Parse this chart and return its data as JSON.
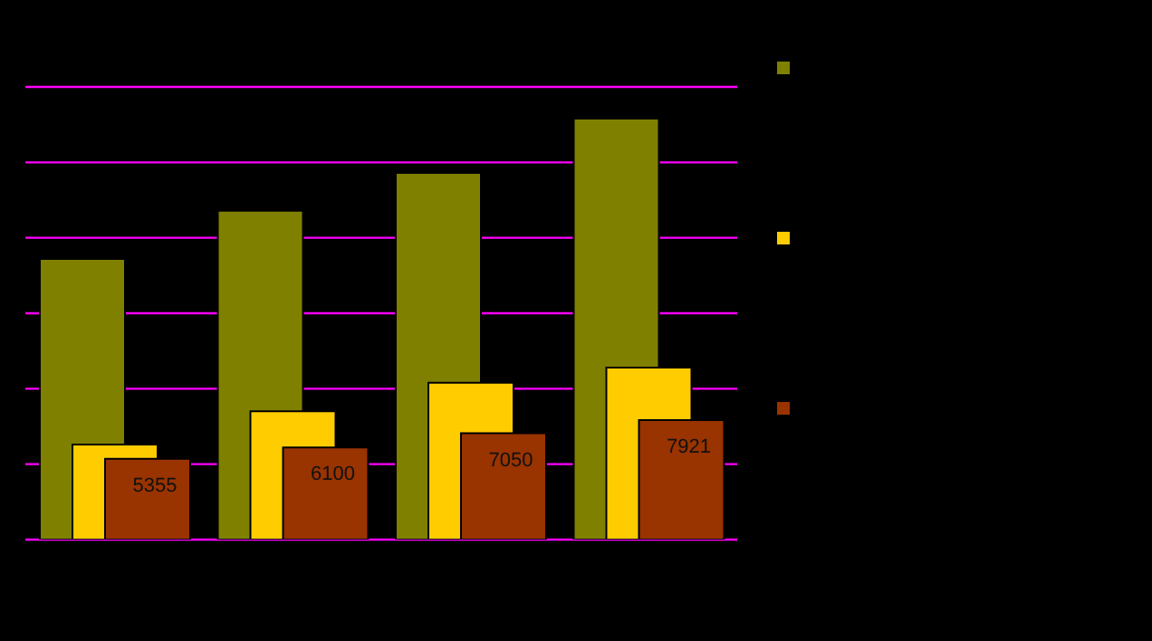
{
  "chart_data": {
    "type": "bar",
    "categories": [
      null,
      null,
      null,
      null
    ],
    "series": [
      {
        "color": "#808000",
        "values": [
          18600,
          21800,
          24300,
          27900
        ]
      },
      {
        "color": "#ffcc00",
        "values": [
          6300,
          8500,
          10400,
          11400
        ]
      },
      {
        "color": "#993300",
        "values": [
          5355,
          6100,
          7050,
          7921
        ],
        "value_labels": [
          "5355",
          "6100",
          "7050",
          "7921"
        ]
      }
    ],
    "ylim": [
      0,
      30000
    ],
    "yticks": [
      {
        "value": 0,
        "label": null
      },
      {
        "value": 5000,
        "label": null
      },
      {
        "value": 10000,
        "label": null
      },
      {
        "value": 15000,
        "label": null
      },
      {
        "value": 20000,
        "label": null
      },
      {
        "value": 25000,
        "label": null
      },
      {
        "value": 30000,
        "label": null
      }
    ],
    "grid": "y"
  }
}
